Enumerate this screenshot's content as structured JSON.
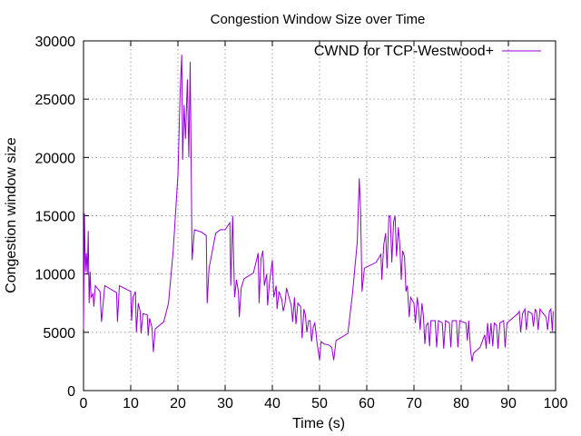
{
  "chart_data": {
    "type": "line",
    "title": "Congestion Window Size over Time",
    "xlabel": "Time (s)",
    "ylabel": "Congestion window size",
    "xlim": [
      0,
      100
    ],
    "ylim": [
      0,
      30000
    ],
    "x_ticks": [
      0,
      10,
      20,
      30,
      40,
      50,
      60,
      70,
      80,
      90,
      100
    ],
    "y_ticks": [
      0,
      5000,
      10000,
      15000,
      20000,
      25000,
      30000
    ],
    "grid": true,
    "legend_position": "top-right",
    "series": [
      {
        "name": "CWND for TCP-Westwood+",
        "color": "#9400d3",
        "points": [
          [
            0.0,
            5300
          ],
          [
            0.2,
            15200
          ],
          [
            0.4,
            10200
          ],
          [
            0.6,
            11800
          ],
          [
            0.8,
            10000
          ],
          [
            1.0,
            13700
          ],
          [
            1.2,
            7500
          ],
          [
            1.4,
            10200
          ],
          [
            1.6,
            8000
          ],
          [
            2.0,
            8300
          ],
          [
            2.2,
            7200
          ],
          [
            2.5,
            9000
          ],
          [
            3.5,
            8500
          ],
          [
            3.8,
            5900
          ],
          [
            4.5,
            9000
          ],
          [
            7.0,
            8400
          ],
          [
            7.2,
            5900
          ],
          [
            7.6,
            9000
          ],
          [
            10.0,
            8500
          ],
          [
            10.2,
            6000
          ],
          [
            10.5,
            8000
          ],
          [
            11.0,
            8500
          ],
          [
            11.2,
            5000
          ],
          [
            11.6,
            7500
          ],
          [
            12.0,
            6800
          ],
          [
            12.2,
            4900
          ],
          [
            12.6,
            6600
          ],
          [
            13.5,
            6500
          ],
          [
            13.7,
            4700
          ],
          [
            14.0,
            6200
          ],
          [
            14.5,
            5400
          ],
          [
            14.8,
            3300
          ],
          [
            15.2,
            5300
          ],
          [
            17.0,
            5900
          ],
          [
            18.0,
            7500
          ],
          [
            19.0,
            12000
          ],
          [
            20.0,
            18500
          ],
          [
            20.5,
            26000
          ],
          [
            20.8,
            28800
          ],
          [
            21.0,
            19800
          ],
          [
            21.3,
            24500
          ],
          [
            21.6,
            21600
          ],
          [
            22.0,
            26700
          ],
          [
            22.3,
            20000
          ],
          [
            22.6,
            28200
          ],
          [
            23.0,
            11200
          ],
          [
            23.5,
            13800
          ],
          [
            25.0,
            13600
          ],
          [
            26.0,
            13300
          ],
          [
            26.2,
            7500
          ],
          [
            26.6,
            10500
          ],
          [
            28.0,
            13500
          ],
          [
            29.0,
            13800
          ],
          [
            30.0,
            13800
          ],
          [
            31.0,
            14400
          ],
          [
            31.2,
            9000
          ],
          [
            31.6,
            15000
          ],
          [
            32.0,
            8000
          ],
          [
            32.4,
            9500
          ],
          [
            32.8,
            8500
          ],
          [
            33.0,
            6300
          ],
          [
            33.4,
            8800
          ],
          [
            34.0,
            9600
          ],
          [
            36.0,
            10100
          ],
          [
            37.0,
            11800
          ],
          [
            37.2,
            7500
          ],
          [
            37.6,
            11300
          ],
          [
            38.0,
            12000
          ],
          [
            38.3,
            9000
          ],
          [
            38.8,
            10000
          ],
          [
            39.0,
            7300
          ],
          [
            39.4,
            9300
          ],
          [
            40.0,
            11200
          ],
          [
            40.3,
            8000
          ],
          [
            40.8,
            9000
          ],
          [
            41.0,
            7000
          ],
          [
            41.4,
            8500
          ],
          [
            42.0,
            7800
          ],
          [
            42.3,
            6800
          ],
          [
            42.7,
            7500
          ],
          [
            43.0,
            8800
          ],
          [
            44.0,
            7300
          ],
          [
            44.3,
            5900
          ],
          [
            44.7,
            8000
          ],
          [
            45.0,
            5700
          ],
          [
            45.4,
            7500
          ],
          [
            46.0,
            7200
          ],
          [
            46.3,
            4500
          ],
          [
            46.7,
            7000
          ],
          [
            47.0,
            6500
          ],
          [
            47.3,
            5000
          ],
          [
            47.7,
            6000
          ],
          [
            48.0,
            6000
          ],
          [
            48.3,
            4200
          ],
          [
            48.7,
            5500
          ],
          [
            49.0,
            5800
          ],
          [
            49.5,
            4000
          ],
          [
            50.0,
            2600
          ],
          [
            50.3,
            4200
          ],
          [
            51.0,
            4000
          ],
          [
            52.0,
            3900
          ],
          [
            52.6,
            3700
          ],
          [
            53.0,
            2600
          ],
          [
            53.5,
            4300
          ],
          [
            56.0,
            4900
          ],
          [
            57.0,
            8400
          ],
          [
            58.0,
            12800
          ],
          [
            58.4,
            18200
          ],
          [
            58.7,
            15500
          ],
          [
            59.0,
            8500
          ],
          [
            59.5,
            10500
          ],
          [
            62.0,
            11000
          ],
          [
            63.0,
            11700
          ],
          [
            63.2,
            9500
          ],
          [
            63.6,
            12500
          ],
          [
            64.0,
            13500
          ],
          [
            64.3,
            10500
          ],
          [
            64.7,
            15000
          ],
          [
            65.0,
            14900
          ],
          [
            65.3,
            11000
          ],
          [
            65.7,
            14500
          ],
          [
            66.0,
            15000
          ],
          [
            66.3,
            11500
          ],
          [
            66.7,
            14000
          ],
          [
            67.0,
            12500
          ],
          [
            67.3,
            9500
          ],
          [
            67.6,
            12000
          ],
          [
            68.0,
            11500
          ],
          [
            68.3,
            8500
          ],
          [
            68.6,
            9000
          ],
          [
            69.0,
            6300
          ],
          [
            69.3,
            8000
          ],
          [
            70.0,
            7500
          ],
          [
            70.3,
            5800
          ],
          [
            70.7,
            8000
          ],
          [
            71.0,
            7000
          ],
          [
            71.3,
            5200
          ],
          [
            71.7,
            7500
          ],
          [
            72.0,
            6400
          ],
          [
            72.3,
            4000
          ],
          [
            72.6,
            5600
          ],
          [
            73.0,
            5800
          ],
          [
            73.3,
            3800
          ],
          [
            73.6,
            6000
          ],
          [
            74.5,
            6000
          ],
          [
            74.8,
            3700
          ],
          [
            75.2,
            6000
          ],
          [
            76.0,
            5800
          ],
          [
            76.3,
            3600
          ],
          [
            76.7,
            6000
          ],
          [
            77.5,
            5800
          ],
          [
            77.8,
            3700
          ],
          [
            78.1,
            6000
          ],
          [
            79.0,
            6000
          ],
          [
            79.3,
            3700
          ],
          [
            79.7,
            6000
          ],
          [
            81.0,
            5800
          ],
          [
            81.3,
            4300
          ],
          [
            81.6,
            6000
          ],
          [
            82.0,
            3400
          ],
          [
            82.3,
            2500
          ],
          [
            82.6,
            3200
          ],
          [
            84.0,
            3700
          ],
          [
            85.0,
            4800
          ],
          [
            85.3,
            3600
          ],
          [
            85.6,
            5800
          ],
          [
            86.0,
            4000
          ],
          [
            86.3,
            5800
          ],
          [
            86.7,
            3800
          ],
          [
            87.0,
            5800
          ],
          [
            87.5,
            5600
          ],
          [
            87.8,
            3600
          ],
          [
            88.2,
            5800
          ],
          [
            89.0,
            6000
          ],
          [
            89.3,
            3700
          ],
          [
            89.7,
            5800
          ],
          [
            90.0,
            5900
          ],
          [
            92.0,
            6600
          ],
          [
            92.3,
            6800
          ],
          [
            92.6,
            5000
          ],
          [
            93.0,
            6600
          ],
          [
            93.5,
            7000
          ],
          [
            93.8,
            5200
          ],
          [
            94.2,
            6800
          ],
          [
            95.0,
            6600
          ],
          [
            95.3,
            5500
          ],
          [
            95.7,
            7000
          ],
          [
            96.0,
            6700
          ],
          [
            96.3,
            5200
          ],
          [
            96.7,
            7000
          ],
          [
            97.0,
            6800
          ],
          [
            98.0,
            6300
          ],
          [
            98.3,
            5200
          ],
          [
            98.7,
            6800
          ],
          [
            99.0,
            7000
          ],
          [
            99.3,
            5100
          ],
          [
            99.5,
            6800
          ]
        ]
      }
    ]
  }
}
